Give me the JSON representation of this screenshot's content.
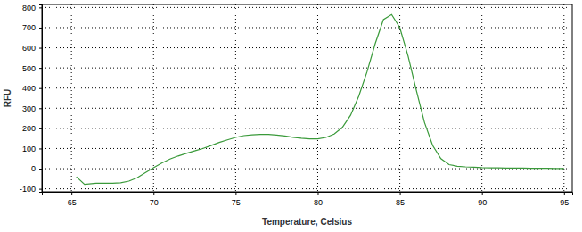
{
  "chart_data": {
    "type": "line",
    "x_label": "Temperature, Celsius",
    "y_label": "RFU",
    "x": [
      65.3,
      65.8,
      66.5,
      67,
      67.5,
      68,
      68.5,
      69,
      69.5,
      70,
      70.5,
      71,
      71.5,
      72,
      72.5,
      73,
      73.5,
      74,
      74.5,
      75,
      75.5,
      76,
      76.5,
      77,
      77.5,
      78,
      78.5,
      79,
      79.5,
      80,
      80.5,
      81,
      81.5,
      82,
      82.5,
      83,
      83.5,
      84,
      84.5,
      85,
      85.5,
      86,
      86.5,
      87,
      87.5,
      88,
      88.5,
      89,
      89.5,
      90,
      90.5,
      91,
      91.5,
      92,
      92.5,
      93,
      93.5,
      94,
      94.5,
      95
    ],
    "values": [
      -40,
      -78,
      -72,
      -72,
      -72,
      -70,
      -62,
      -45,
      -20,
      5,
      28,
      48,
      63,
      76,
      88,
      100,
      115,
      130,
      143,
      155,
      164,
      168,
      170,
      170,
      167,
      162,
      156,
      151,
      148,
      148,
      155,
      172,
      205,
      265,
      360,
      480,
      620,
      740,
      765,
      700,
      560,
      390,
      230,
      115,
      50,
      20,
      12,
      9,
      7,
      5,
      4,
      4,
      3,
      3,
      3,
      2,
      2,
      2,
      1,
      1
    ],
    "color": "#3a9a3a",
    "xlim": [
      63.2,
      95.5
    ],
    "ylim": [
      -115,
      815
    ],
    "xticks": [
      65,
      70,
      75,
      80,
      85,
      90,
      95
    ],
    "yticks": [
      -100,
      0,
      100,
      200,
      300,
      400,
      500,
      600,
      700,
      800
    ],
    "grid": true
  }
}
